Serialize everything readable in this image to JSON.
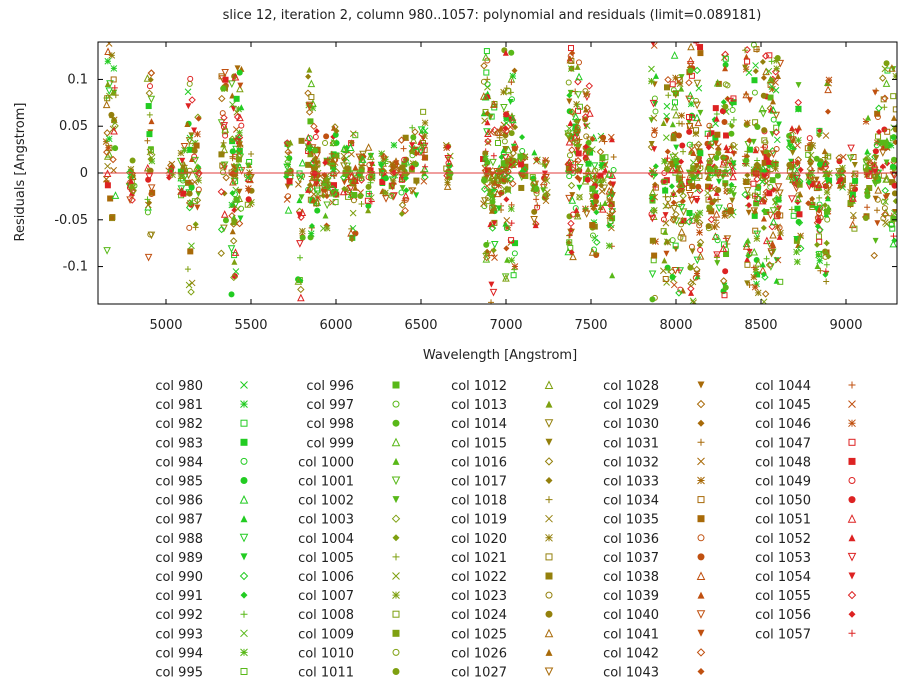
{
  "chart_data": {
    "type": "scatter",
    "title": "slice 12, iteration 2, column 980..1057: polynomial and residuals (limit=0.089181)",
    "xlabel": "Wavelength [Angstrom]",
    "ylabel": "Residuals [Angstrom]",
    "xlim": [
      4600,
      9300
    ],
    "ylim": [
      -0.14,
      0.14
    ],
    "xticks": [
      {
        "value": 5000,
        "label": "5000"
      },
      {
        "value": 5500,
        "label": "5500"
      },
      {
        "value": 6000,
        "label": "6000"
      },
      {
        "value": 6500,
        "label": "6500"
      },
      {
        "value": 7000,
        "label": "7000"
      },
      {
        "value": 7500,
        "label": "7500"
      },
      {
        "value": 8000,
        "label": "8000"
      },
      {
        "value": 8500,
        "label": "8500"
      },
      {
        "value": 9000,
        "label": "9000"
      }
    ],
    "yticks": [
      {
        "value": 0.1,
        "label": "0.1"
      },
      {
        "value": 0.05,
        "label": "0.05"
      },
      {
        "value": 0,
        "label": "0"
      },
      {
        "value": -0.05,
        "label": "-0.05"
      },
      {
        "value": -0.1,
        "label": "-0.1"
      }
    ],
    "polynomial_line": {
      "y": 0,
      "color": "#e03c3c"
    },
    "grid": false,
    "legend_position": "bottom",
    "legend_columns": [
      {
        "labels": [
          "col 980",
          "col 981",
          "col 982",
          "col 983",
          "col 984",
          "col 985",
          "col 986",
          "col 987",
          "col 988",
          "col 989",
          "col 990",
          "col 991",
          "col 992",
          "col 993",
          "col 994",
          "col 995"
        ],
        "symbols": [
          "x",
          "star",
          "sq-open",
          "sq-filled",
          "circ-open",
          "circ-filled",
          "tri-up-open",
          "tri-up-filled",
          "tri-down-open",
          "tri-down-filled",
          "diamond-open",
          "diamond-filled",
          "plus",
          "x",
          "star",
          "sq-open"
        ]
      },
      {
        "labels": [
          "col 996",
          "col 997",
          "col 998",
          "col 999",
          "col 1000",
          "col 1001",
          "col 1002",
          "col 1003",
          "col 1004",
          "col 1005",
          "col 1006",
          "col 1007",
          "col 1008",
          "col 1009",
          "col 1010",
          "col 1011"
        ],
        "symbols": [
          "sq-filled",
          "circ-open",
          "circ-filled",
          "tri-up-open",
          "tri-up-filled",
          "tri-down-open",
          "tri-down-filled",
          "diamond-open",
          "diamond-filled",
          "plus",
          "x",
          "star",
          "sq-open",
          "sq-filled",
          "circ-open",
          "circ-filled"
        ]
      },
      {
        "labels": [
          "col 1012",
          "col 1013",
          "col 1014",
          "col 1015",
          "col 1016",
          "col 1017",
          "col 1018",
          "col 1019",
          "col 1020",
          "col 1021",
          "col 1022",
          "col 1023",
          "col 1024",
          "col 1025",
          "col 1026",
          "col 1027"
        ],
        "symbols": [
          "tri-up-open",
          "tri-up-filled",
          "tri-down-open",
          "tri-down-filled",
          "diamond-open",
          "diamond-filled",
          "plus",
          "x",
          "star",
          "sq-open",
          "sq-filled",
          "circ-open",
          "circ-filled",
          "tri-up-open",
          "tri-up-filled",
          "tri-down-open"
        ]
      },
      {
        "labels": [
          "col 1028",
          "col 1029",
          "col 1030",
          "col 1031",
          "col 1032",
          "col 1033",
          "col 1034",
          "col 1035",
          "col 1036",
          "col 1037",
          "col 1038",
          "col 1039",
          "col 1040",
          "col 1041",
          "col 1042",
          "col 1043"
        ],
        "symbols": [
          "tri-down-filled",
          "diamond-open",
          "diamond-filled",
          "plus",
          "x",
          "star",
          "sq-open",
          "sq-filled",
          "circ-open",
          "circ-filled",
          "tri-up-open",
          "tri-up-filled",
          "tri-down-open",
          "tri-down-filled",
          "diamond-open",
          "diamond-filled"
        ]
      },
      {
        "labels": [
          "col 1044",
          "col 1045",
          "col 1046",
          "col 1047",
          "col 1048",
          "col 1049",
          "col 1050",
          "col 1051",
          "col 1052",
          "col 1053",
          "col 1054",
          "col 1055",
          "col 1056",
          "col 1057"
        ],
        "symbols": [
          "plus",
          "x",
          "star",
          "sq-open",
          "sq-filled",
          "circ-open",
          "circ-filled",
          "tri-up-open",
          "tri-up-filled",
          "tri-down-open",
          "tri-down-filled",
          "diamond-open",
          "diamond-filled",
          "plus"
        ]
      }
    ],
    "legend_colors": [
      "#22cc22",
      "#58b818",
      "#7ea010",
      "#94800c",
      "#a86a08",
      "#c05010",
      "#dd2222"
    ],
    "residual_clusters": [
      {
        "x": 4660,
        "ymin": -0.085,
        "ymax": 0.14,
        "n": 25
      },
      {
        "x": 4690,
        "ymin": -0.05,
        "ymax": 0.14,
        "n": 20
      },
      {
        "x": 4800,
        "ymin": -0.04,
        "ymax": 0.02,
        "n": 25
      },
      {
        "x": 4905,
        "ymin": -0.105,
        "ymax": 0.11,
        "n": 35
      },
      {
        "x": 5030,
        "ymin": -0.005,
        "ymax": 0.01,
        "n": 10
      },
      {
        "x": 5100,
        "ymin": -0.025,
        "ymax": 0.03,
        "n": 25
      },
      {
        "x": 5140,
        "ymin": -0.13,
        "ymax": 0.11,
        "n": 35
      },
      {
        "x": 5180,
        "ymin": -0.06,
        "ymax": 0.06,
        "n": 25
      },
      {
        "x": 5340,
        "ymin": -0.09,
        "ymax": 0.13,
        "n": 35
      },
      {
        "x": 5400,
        "ymin": -0.13,
        "ymax": 0.13,
        "n": 50
      },
      {
        "x": 5430,
        "ymin": -0.06,
        "ymax": 0.12,
        "n": 35
      },
      {
        "x": 5490,
        "ymin": -0.04,
        "ymax": 0.03,
        "n": 20
      },
      {
        "x": 5720,
        "ymin": -0.04,
        "ymax": 0.04,
        "n": 25
      },
      {
        "x": 5790,
        "ymin": -0.14,
        "ymax": 0.05,
        "n": 25
      },
      {
        "x": 5850,
        "ymin": -0.07,
        "ymax": 0.12,
        "n": 40
      },
      {
        "x": 5880,
        "ymin": -0.05,
        "ymax": 0.05,
        "n": 40
      },
      {
        "x": 5940,
        "ymin": -0.06,
        "ymax": 0.04,
        "n": 35
      },
      {
        "x": 5990,
        "ymin": -0.04,
        "ymax": 0.05,
        "n": 40
      },
      {
        "x": 6060,
        "ymin": -0.03,
        "ymax": 0.03,
        "n": 30
      },
      {
        "x": 6100,
        "ymin": -0.075,
        "ymax": 0.055,
        "n": 35
      },
      {
        "x": 6150,
        "ymin": -0.035,
        "ymax": 0.03,
        "n": 25
      },
      {
        "x": 6200,
        "ymin": -0.04,
        "ymax": 0.03,
        "n": 25
      },
      {
        "x": 6280,
        "ymin": -0.03,
        "ymax": 0.03,
        "n": 25
      },
      {
        "x": 6340,
        "ymin": -0.03,
        "ymax": 0.03,
        "n": 25
      },
      {
        "x": 6400,
        "ymin": -0.045,
        "ymax": 0.045,
        "n": 30
      },
      {
        "x": 6460,
        "ymin": -0.03,
        "ymax": 0.05,
        "n": 25
      },
      {
        "x": 6510,
        "ymin": -0.01,
        "ymax": 0.07,
        "n": 25
      },
      {
        "x": 6660,
        "ymin": -0.02,
        "ymax": 0.03,
        "n": 20
      },
      {
        "x": 6880,
        "ymin": -0.13,
        "ymax": 0.14,
        "n": 55
      },
      {
        "x": 6920,
        "ymin": -0.14,
        "ymax": 0.09,
        "n": 45
      },
      {
        "x": 6960,
        "ymin": -0.06,
        "ymax": 0.05,
        "n": 30
      },
      {
        "x": 7000,
        "ymin": -0.12,
        "ymax": 0.14,
        "n": 55
      },
      {
        "x": 7040,
        "ymin": -0.11,
        "ymax": 0.13,
        "n": 45
      },
      {
        "x": 7100,
        "ymin": -0.02,
        "ymax": 0.05,
        "n": 25
      },
      {
        "x": 7170,
        "ymin": -0.06,
        "ymax": 0.03,
        "n": 25
      },
      {
        "x": 7230,
        "ymin": -0.03,
        "ymax": 0.02,
        "n": 20
      },
      {
        "x": 7380,
        "ymin": -0.13,
        "ymax": 0.14,
        "n": 55
      },
      {
        "x": 7420,
        "ymin": -0.06,
        "ymax": 0.12,
        "n": 45
      },
      {
        "x": 7480,
        "ymin": -0.05,
        "ymax": 0.1,
        "n": 40
      },
      {
        "x": 7520,
        "ymin": -0.1,
        "ymax": 0.05,
        "n": 40
      },
      {
        "x": 7570,
        "ymin": -0.04,
        "ymax": 0.04,
        "n": 25
      },
      {
        "x": 7620,
        "ymin": -0.11,
        "ymax": 0.05,
        "n": 30
      },
      {
        "x": 7870,
        "ymin": -0.14,
        "ymax": 0.14,
        "n": 45
      },
      {
        "x": 7940,
        "ymin": -0.12,
        "ymax": 0.1,
        "n": 40
      },
      {
        "x": 7990,
        "ymin": -0.12,
        "ymax": 0.14,
        "n": 45
      },
      {
        "x": 8030,
        "ymin": -0.14,
        "ymax": 0.12,
        "n": 45
      },
      {
        "x": 8090,
        "ymin": -0.14,
        "ymax": 0.14,
        "n": 55
      },
      {
        "x": 8130,
        "ymin": -0.12,
        "ymax": 0.14,
        "n": 50
      },
      {
        "x": 8200,
        "ymin": -0.06,
        "ymax": 0.06,
        "n": 40
      },
      {
        "x": 8240,
        "ymin": -0.1,
        "ymax": 0.1,
        "n": 40
      },
      {
        "x": 8290,
        "ymin": -0.14,
        "ymax": 0.14,
        "n": 50
      },
      {
        "x": 8330,
        "ymin": -0.05,
        "ymax": 0.08,
        "n": 35
      },
      {
        "x": 8420,
        "ymin": -0.12,
        "ymax": 0.14,
        "n": 45
      },
      {
        "x": 8470,
        "ymin": -0.14,
        "ymax": 0.14,
        "n": 55
      },
      {
        "x": 8520,
        "ymin": -0.14,
        "ymax": 0.14,
        "n": 55
      },
      {
        "x": 8560,
        "ymin": -0.11,
        "ymax": 0.13,
        "n": 45
      },
      {
        "x": 8600,
        "ymin": -0.12,
        "ymax": 0.14,
        "n": 40
      },
      {
        "x": 8680,
        "ymin": -0.05,
        "ymax": 0.05,
        "n": 30
      },
      {
        "x": 8720,
        "ymin": -0.12,
        "ymax": 0.1,
        "n": 40
      },
      {
        "x": 8790,
        "ymin": -0.04,
        "ymax": 0.04,
        "n": 30
      },
      {
        "x": 8840,
        "ymin": -0.13,
        "ymax": 0.05,
        "n": 40
      },
      {
        "x": 8890,
        "ymin": -0.12,
        "ymax": 0.12,
        "n": 45
      },
      {
        "x": 8970,
        "ymin": -0.02,
        "ymax": 0.02,
        "n": 20
      },
      {
        "x": 9040,
        "ymin": -0.06,
        "ymax": 0.04,
        "n": 25
      },
      {
        "x": 9130,
        "ymin": -0.05,
        "ymax": 0.06,
        "n": 30
      },
      {
        "x": 9180,
        "ymin": -0.1,
        "ymax": 0.1,
        "n": 40
      },
      {
        "x": 9230,
        "ymin": -0.06,
        "ymax": 0.12,
        "n": 40
      },
      {
        "x": 9280,
        "ymin": -0.1,
        "ymax": 0.12,
        "n": 35
      }
    ]
  }
}
